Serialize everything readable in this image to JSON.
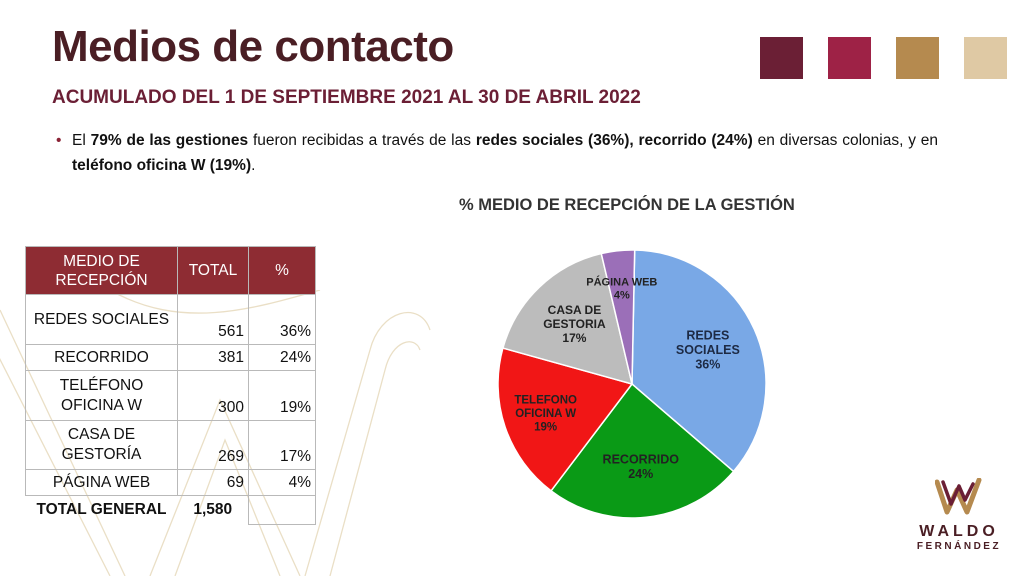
{
  "header": {
    "title": "Medios de contacto",
    "subtitle": "ACUMULADO DEL 1 DE SEPTIEMBRE 2021 AL 30 DE ABRIL 2022"
  },
  "palette": [
    "#6b1f35",
    "#9e2246",
    "#b58a4f",
    "#dfc9a4"
  ],
  "summary": {
    "bullet": "•",
    "p1": "El ",
    "b1": "79% de las gestiones",
    "p2": " fueron recibidas a través de las ",
    "b2": "redes sociales (36%), recorrido (24%)",
    "p3": "  en diversas colonias, y en ",
    "b3": "teléfono oficina W (19%)",
    "p4": "."
  },
  "table": {
    "headers": [
      "MEDIO DE RECEPCIÓN",
      "TOTAL",
      "%"
    ],
    "rows": [
      {
        "medio": "REDES SOCIALES",
        "total": "561",
        "pct": "36%"
      },
      {
        "medio": "RECORRIDO",
        "total": "381",
        "pct": "24%"
      },
      {
        "medio": "TELÉFONO OFICINA W",
        "total": "300",
        "pct": "19%"
      },
      {
        "medio": "CASA DE GESTORÍA",
        "total": "269",
        "pct": "17%"
      },
      {
        "medio": "PÁGINA WEB",
        "total": "69",
        "pct": "4%"
      }
    ],
    "total_label": "TOTAL GENERAL",
    "total_value": "1,580"
  },
  "chart_data": {
    "type": "pie",
    "title": "% MEDIO DE RECEPCIÓN DE LA GESTIÓN",
    "slices": [
      {
        "label": "REDES SOCIALES",
        "label_lines": [
          "REDES",
          "SOCIALES"
        ],
        "value_label": "36%",
        "value": 36,
        "color": "#79a8e6"
      },
      {
        "label": "RECORRIDO",
        "label_lines": [
          "RECORRIDO"
        ],
        "value_label": "24%",
        "value": 24,
        "color": "#0a9a16"
      },
      {
        "label": "TELEFONO OFICINA W",
        "label_lines": [
          "TELEFONO",
          "OFICINA W"
        ],
        "value_label": "19%",
        "value": 19,
        "color": "#f11616"
      },
      {
        "label": "CASA DE GESTORIA",
        "label_lines": [
          "CASA DE",
          "GESTORIA"
        ],
        "value_label": "17%",
        "value": 17,
        "color": "#bcbcbc"
      },
      {
        "label": "PÁGINA WEB",
        "label_lines": [
          "PÁGINA WEB"
        ],
        "value_label": "4%",
        "value": 4,
        "color": "#9b6fb8"
      }
    ],
    "legend": "none"
  },
  "logo": {
    "name": "WALDO",
    "surname": "FERNÁNDEZ"
  }
}
